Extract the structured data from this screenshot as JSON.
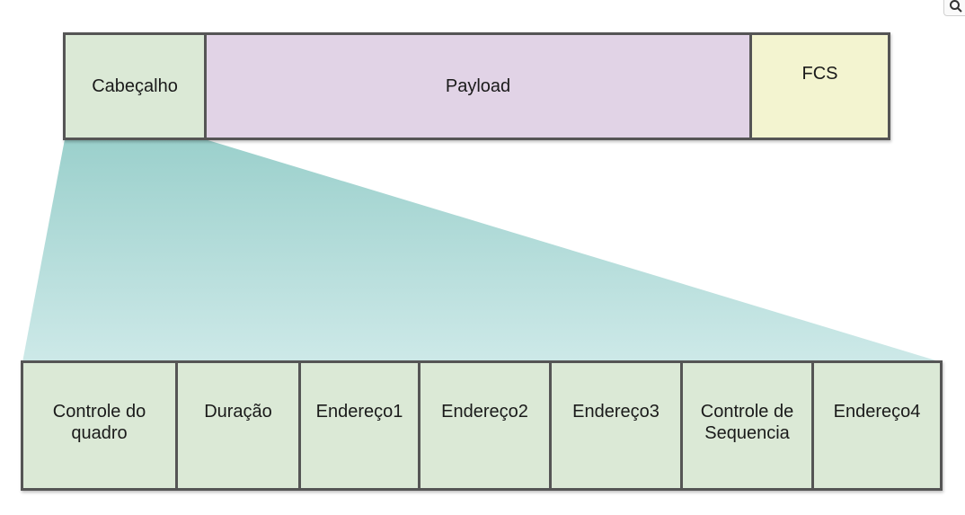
{
  "colors": {
    "header": "#dbe9d6",
    "payload": "#e1d3e6",
    "fcs": "#f3f4d0",
    "field": "#dbe9d6",
    "border": "#555555",
    "wedge_top": "#9bd0cc",
    "wedge_bottom": "#cde9e8"
  },
  "top_frame": {
    "cells": [
      {
        "key": "header",
        "label": "Cabeçalho",
        "color": "#dbe9d6"
      },
      {
        "key": "payload",
        "label": "Payload",
        "color": "#e1d3e6"
      },
      {
        "key": "fcs",
        "label": "FCS",
        "color": "#f3f4d0"
      }
    ]
  },
  "header_fields": [
    {
      "label": "Controle do quadro"
    },
    {
      "label": "Duração"
    },
    {
      "label": "Endereço1"
    },
    {
      "label": "Endereço2"
    },
    {
      "label": "Endereço3"
    },
    {
      "label": "Controle de Sequencia"
    },
    {
      "label": "Endereço4"
    }
  ],
  "corner_icon": "search-icon"
}
